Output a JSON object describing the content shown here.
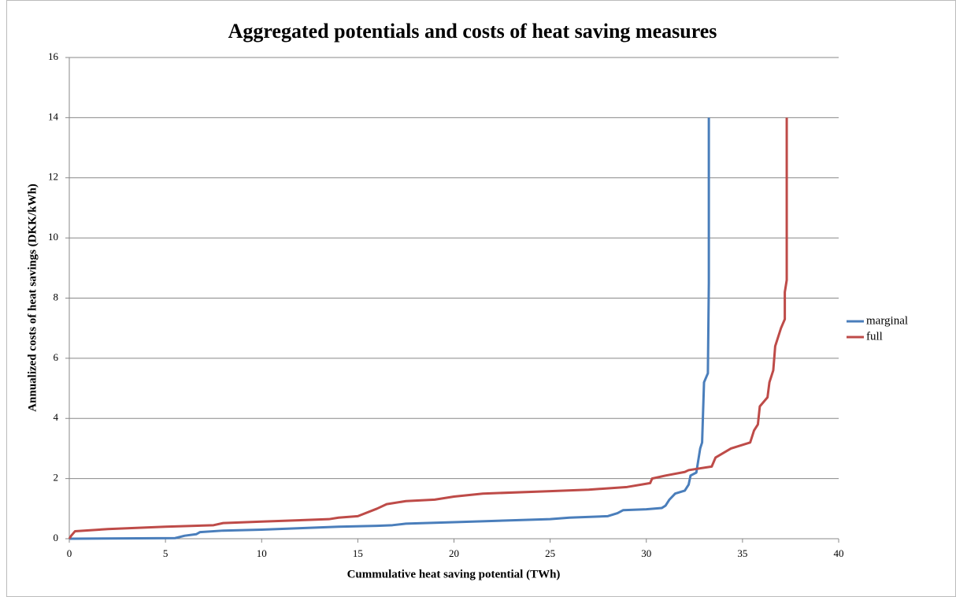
{
  "chart_data": {
    "type": "line",
    "title": "Aggregated potentials and costs of heat saving measures",
    "x_label": "Cummulative heat saving potential (TWh)",
    "y_label": "Annualized  costs of heat savings (DKK/kWh)",
    "xlim": [
      0,
      40
    ],
    "xticks": [
      0,
      5,
      10,
      15,
      20,
      25,
      30,
      35,
      40
    ],
    "ylim": [
      0,
      16
    ],
    "yticks": [
      0,
      2,
      4,
      6,
      8,
      10,
      12,
      14,
      16
    ],
    "grid": true,
    "legend": "right",
    "series": [
      {
        "name": "marginal",
        "color": "#4a7ebb",
        "x": [
          0,
          5.5,
          6,
          6.6,
          6.8,
          8,
          10,
          12,
          14,
          16,
          16.8,
          17.5,
          20,
          25,
          26,
          28,
          28.5,
          28.8,
          30,
          30.8,
          31,
          31.2,
          31.5,
          32,
          32.2,
          32.3,
          32.6,
          32.8,
          32.9,
          33,
          33.2,
          33.25,
          33.25
        ],
        "values": [
          0,
          0.02,
          0.1,
          0.15,
          0.22,
          0.27,
          0.3,
          0.35,
          0.4,
          0.43,
          0.45,
          0.5,
          0.55,
          0.65,
          0.7,
          0.75,
          0.85,
          0.95,
          0.98,
          1.02,
          1.1,
          1.3,
          1.5,
          1.6,
          1.8,
          2.1,
          2.2,
          3.0,
          3.2,
          5.2,
          5.5,
          8.5,
          14
        ]
      },
      {
        "name": "full",
        "color": "#be4b48",
        "x": [
          0,
          0.1,
          0.3,
          2,
          5,
          7.5,
          8,
          10,
          13.5,
          14,
          15,
          16,
          16.5,
          17.5,
          19,
          20,
          21.5,
          25,
          27,
          29,
          30.2,
          30.3,
          31,
          32,
          32.2,
          33.4,
          33.6,
          34,
          34.4,
          35.4,
          35.6,
          35.8,
          35.9,
          36.3,
          36.4,
          36.6,
          36.7,
          37,
          37.2,
          37.2,
          37.3,
          37.3
        ],
        "values": [
          0,
          0.1,
          0.25,
          0.32,
          0.4,
          0.45,
          0.52,
          0.57,
          0.65,
          0.7,
          0.75,
          1.0,
          1.15,
          1.25,
          1.3,
          1.4,
          1.5,
          1.58,
          1.63,
          1.72,
          1.85,
          2.0,
          2.1,
          2.22,
          2.28,
          2.4,
          2.7,
          2.85,
          3.0,
          3.2,
          3.6,
          3.8,
          4.4,
          4.7,
          5.2,
          5.6,
          6.4,
          7.0,
          7.3,
          8.2,
          8.6,
          14
        ]
      }
    ]
  }
}
